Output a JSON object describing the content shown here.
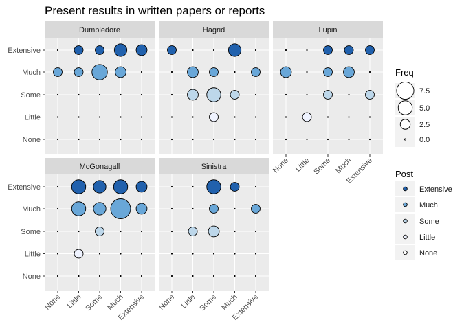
{
  "chart_data": {
    "type": "scatter",
    "title": "Present results in written papers or reports",
    "x_categories": [
      "None",
      "Little",
      "Some",
      "Much",
      "Extensive"
    ],
    "y_categories": [
      "None",
      "Little",
      "Some",
      "Much",
      "Extensive"
    ],
    "facets": [
      {
        "name": "Dumbledore",
        "points": [
          {
            "x": "Little",
            "y": "Extensive",
            "freq": 2
          },
          {
            "x": "Some",
            "y": "Extensive",
            "freq": 2
          },
          {
            "x": "Much",
            "y": "Extensive",
            "freq": 4
          },
          {
            "x": "Extensive",
            "y": "Extensive",
            "freq": 3
          },
          {
            "x": "None",
            "y": "Much",
            "freq": 2
          },
          {
            "x": "Little",
            "y": "Much",
            "freq": 2
          },
          {
            "x": "Some",
            "y": "Much",
            "freq": 6
          },
          {
            "x": "Much",
            "y": "Much",
            "freq": 3
          }
        ]
      },
      {
        "name": "Hagrid",
        "points": [
          {
            "x": "None",
            "y": "Extensive",
            "freq": 2
          },
          {
            "x": "Much",
            "y": "Extensive",
            "freq": 4
          },
          {
            "x": "Little",
            "y": "Much",
            "freq": 3
          },
          {
            "x": "Some",
            "y": "Much",
            "freq": 2
          },
          {
            "x": "Extensive",
            "y": "Much",
            "freq": 2
          },
          {
            "x": "Little",
            "y": "Some",
            "freq": 3
          },
          {
            "x": "Some",
            "y": "Some",
            "freq": 5
          },
          {
            "x": "Much",
            "y": "Some",
            "freq": 2
          },
          {
            "x": "Some",
            "y": "Little",
            "freq": 2
          }
        ]
      },
      {
        "name": "Lupin",
        "points": [
          {
            "x": "Some",
            "y": "Extensive",
            "freq": 2
          },
          {
            "x": "Much",
            "y": "Extensive",
            "freq": 2
          },
          {
            "x": "Extensive",
            "y": "Extensive",
            "freq": 2
          },
          {
            "x": "None",
            "y": "Much",
            "freq": 3
          },
          {
            "x": "Some",
            "y": "Much",
            "freq": 2
          },
          {
            "x": "Much",
            "y": "Much",
            "freq": 3
          },
          {
            "x": "Some",
            "y": "Some",
            "freq": 2
          },
          {
            "x": "Extensive",
            "y": "Some",
            "freq": 2
          },
          {
            "x": "Little",
            "y": "Little",
            "freq": 2
          }
        ]
      },
      {
        "name": "McGonagall",
        "points": [
          {
            "x": "Little",
            "y": "Extensive",
            "freq": 5
          },
          {
            "x": "Some",
            "y": "Extensive",
            "freq": 4
          },
          {
            "x": "Much",
            "y": "Extensive",
            "freq": 5
          },
          {
            "x": "Extensive",
            "y": "Extensive",
            "freq": 3
          },
          {
            "x": "Little",
            "y": "Much",
            "freq": 5
          },
          {
            "x": "Some",
            "y": "Much",
            "freq": 4
          },
          {
            "x": "Much",
            "y": "Much",
            "freq": 10
          },
          {
            "x": "Extensive",
            "y": "Much",
            "freq": 3
          },
          {
            "x": "Some",
            "y": "Some",
            "freq": 2
          },
          {
            "x": "Little",
            "y": "Little",
            "freq": 2
          }
        ]
      },
      {
        "name": "Sinistra",
        "points": [
          {
            "x": "Some",
            "y": "Extensive",
            "freq": 5
          },
          {
            "x": "Much",
            "y": "Extensive",
            "freq": 2
          },
          {
            "x": "Some",
            "y": "Much",
            "freq": 2
          },
          {
            "x": "Extensive",
            "y": "Much",
            "freq": 2
          },
          {
            "x": "Little",
            "y": "Some",
            "freq": 2
          },
          {
            "x": "Some",
            "y": "Some",
            "freq": 3
          }
        ]
      }
    ],
    "legend_size": {
      "title": "Freq",
      "labels": [
        "7.5",
        "5.0",
        "2.5",
        "0.0"
      ],
      "values": [
        7.5,
        5.0,
        2.5,
        0.0
      ],
      "max": 10
    },
    "legend_fill": {
      "title": "Post",
      "labels": [
        "Extensive",
        "Much",
        "Some",
        "Little",
        "None"
      ],
      "colors": {
        "Extensive": "#2161ad",
        "Much": "#69a7d8",
        "Some": "#bdd7ea",
        "Little": "#eff3ff",
        "None": "#ffffff"
      }
    }
  }
}
